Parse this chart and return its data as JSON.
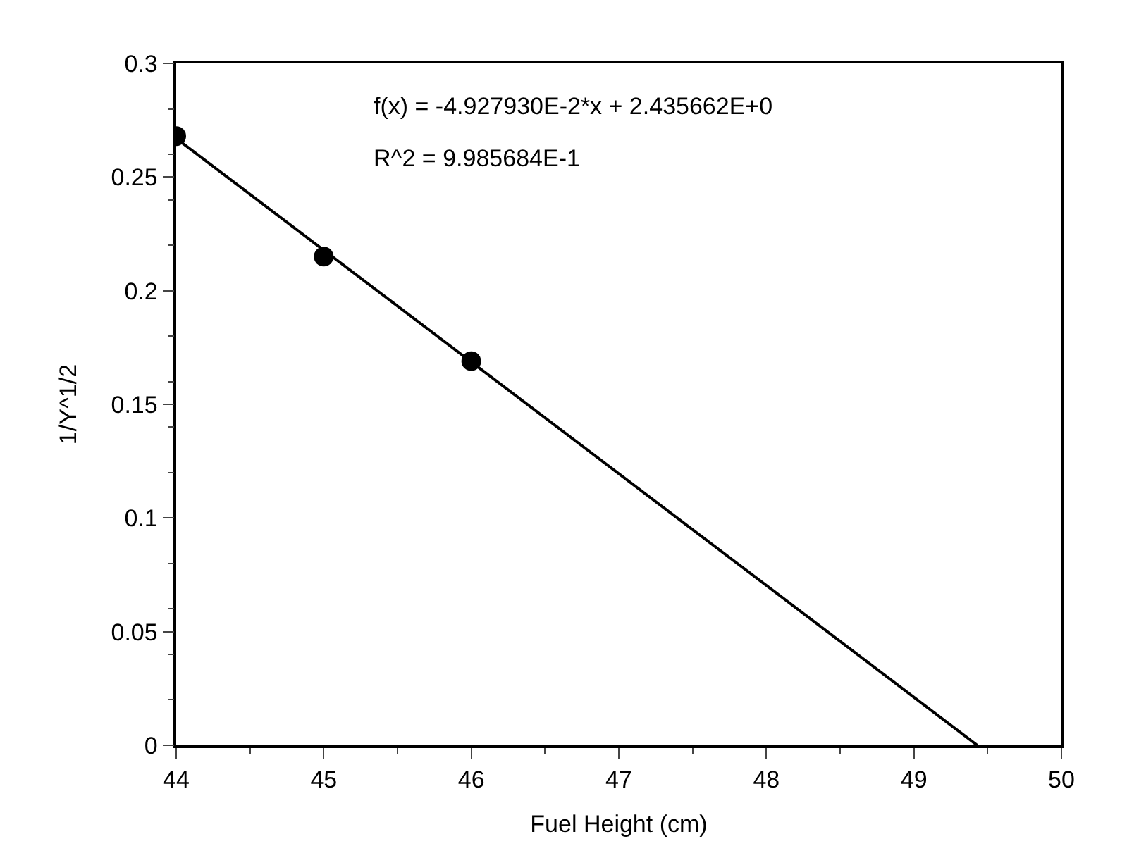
{
  "chart_data": {
    "type": "scatter",
    "xlabel": "Fuel Height (cm)",
    "ylabel": "1/Y^1/2",
    "x": [
      44,
      45,
      46
    ],
    "series": [
      {
        "color": "#000000",
        "marker": "circle",
        "values": [
          0.268,
          0.215,
          0.169
        ]
      },
      {
        "type": "line",
        "color": "#000000",
        "marker": "none",
        "line_style": "solid",
        "x": [
          44,
          49.43
        ],
        "values": [
          0.267,
          0
        ]
      }
    ],
    "xlim": [
      44,
      50
    ],
    "xticks": [
      44,
      45,
      46,
      47,
      48,
      49,
      50
    ],
    "ylim": [
      0,
      0.3
    ],
    "yticks": [
      0,
      0.05,
      0.1,
      0.15,
      0.2,
      0.25,
      0.3
    ],
    "grid": false,
    "annotations": [
      "f(x) = -4.927930E-2*x + 2.435662E+0",
      "R^2 = 9.985684E-1"
    ]
  }
}
